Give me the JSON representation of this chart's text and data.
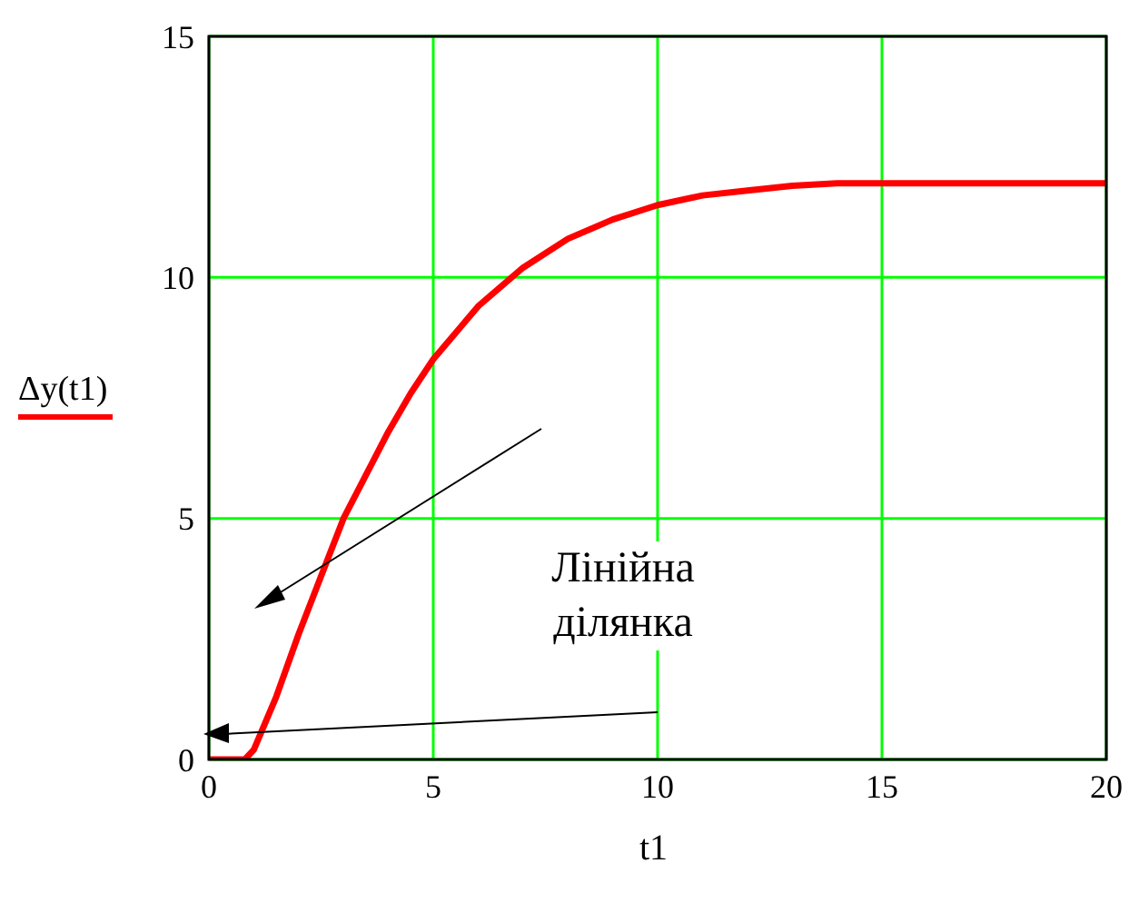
{
  "chart_data": {
    "type": "line",
    "xlabel": "t1",
    "ylabel": "Δy(t1)",
    "x": [
      0,
      0.5,
      0.8,
      1,
      1.5,
      2,
      2.5,
      3,
      3.5,
      4,
      4.5,
      5,
      6,
      7,
      8,
      9,
      10,
      11,
      12,
      13,
      14,
      15,
      20
    ],
    "series": [
      {
        "color": "#ff0000",
        "values": [
          0,
          0,
          0,
          0.2,
          1.3,
          2.6,
          3.8,
          5,
          5.9,
          6.8,
          7.6,
          8.3,
          9.4,
          10.2,
          10.8,
          11.2,
          11.5,
          11.7,
          11.8,
          11.9,
          11.95,
          11.95,
          11.95
        ]
      }
    ],
    "xlim": [
      0,
      20
    ],
    "xticks": [
      0,
      5,
      10,
      15,
      20
    ],
    "ylim": [
      0,
      15
    ],
    "yticks": [
      0,
      5,
      10,
      15
    ],
    "grid": true,
    "marker": "none",
    "line_style": "solid",
    "annotations": [
      "Лінійна ділянка"
    ]
  }
}
